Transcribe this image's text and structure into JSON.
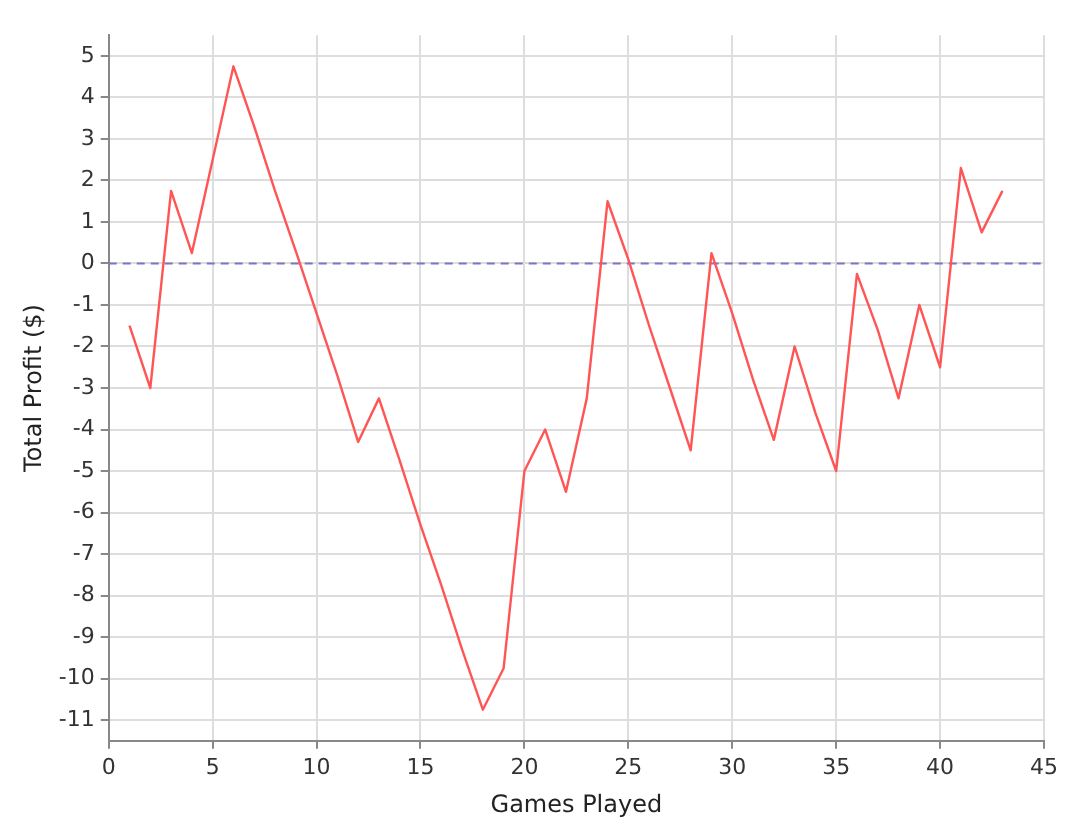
{
  "chart_data": {
    "type": "line",
    "xlabel": "Games Played",
    "ylabel": "Total Profit ($)",
    "x": [
      1,
      2,
      3,
      4,
      5,
      6,
      7,
      8,
      9,
      10,
      11,
      12,
      13,
      14,
      15,
      16,
      17,
      18,
      19,
      20,
      21,
      22,
      23,
      24,
      25,
      26,
      27,
      28,
      29,
      30,
      31,
      32,
      33,
      34,
      35,
      36,
      37,
      38,
      39,
      40,
      41,
      42,
      43
    ],
    "series": [
      {
        "color": "#ff5555",
        "values": [
          -1.5,
          -3.0,
          1.75,
          0.25,
          2.5,
          4.75,
          3.3,
          1.75,
          0.3,
          -1.2,
          -2.7,
          -4.3,
          -3.25,
          -4.75,
          -6.3,
          -7.75,
          -9.3,
          -10.75,
          -9.75,
          -5.0,
          -4.0,
          -5.5,
          -3.25,
          1.5,
          0.1,
          -1.5,
          -3.0,
          -4.5,
          0.25,
          -1.2,
          -2.8,
          -4.25,
          -2.0,
          -3.6,
          -5.0,
          -0.25,
          -1.6,
          -3.25,
          -1.0,
          -2.5,
          2.3,
          0.75,
          1.75
        ]
      }
    ],
    "xlim": [
      0,
      45
    ],
    "xticks": [
      0,
      5,
      10,
      15,
      20,
      25,
      30,
      35,
      40,
      45
    ],
    "ylim": [
      -11.5,
      5.5
    ],
    "yticks": [
      -11,
      -10,
      -9,
      -8,
      -7,
      -6,
      -5,
      -4,
      -3,
      -2,
      -1,
      0,
      1,
      2,
      3,
      4,
      5
    ],
    "ref_lines": [
      {
        "axis": "y",
        "value": 0,
        "color": "#7777cc",
        "line_style": "dashed"
      }
    ],
    "grid": true,
    "legend": false,
    "marker": "none",
    "line_style": "solid"
  }
}
